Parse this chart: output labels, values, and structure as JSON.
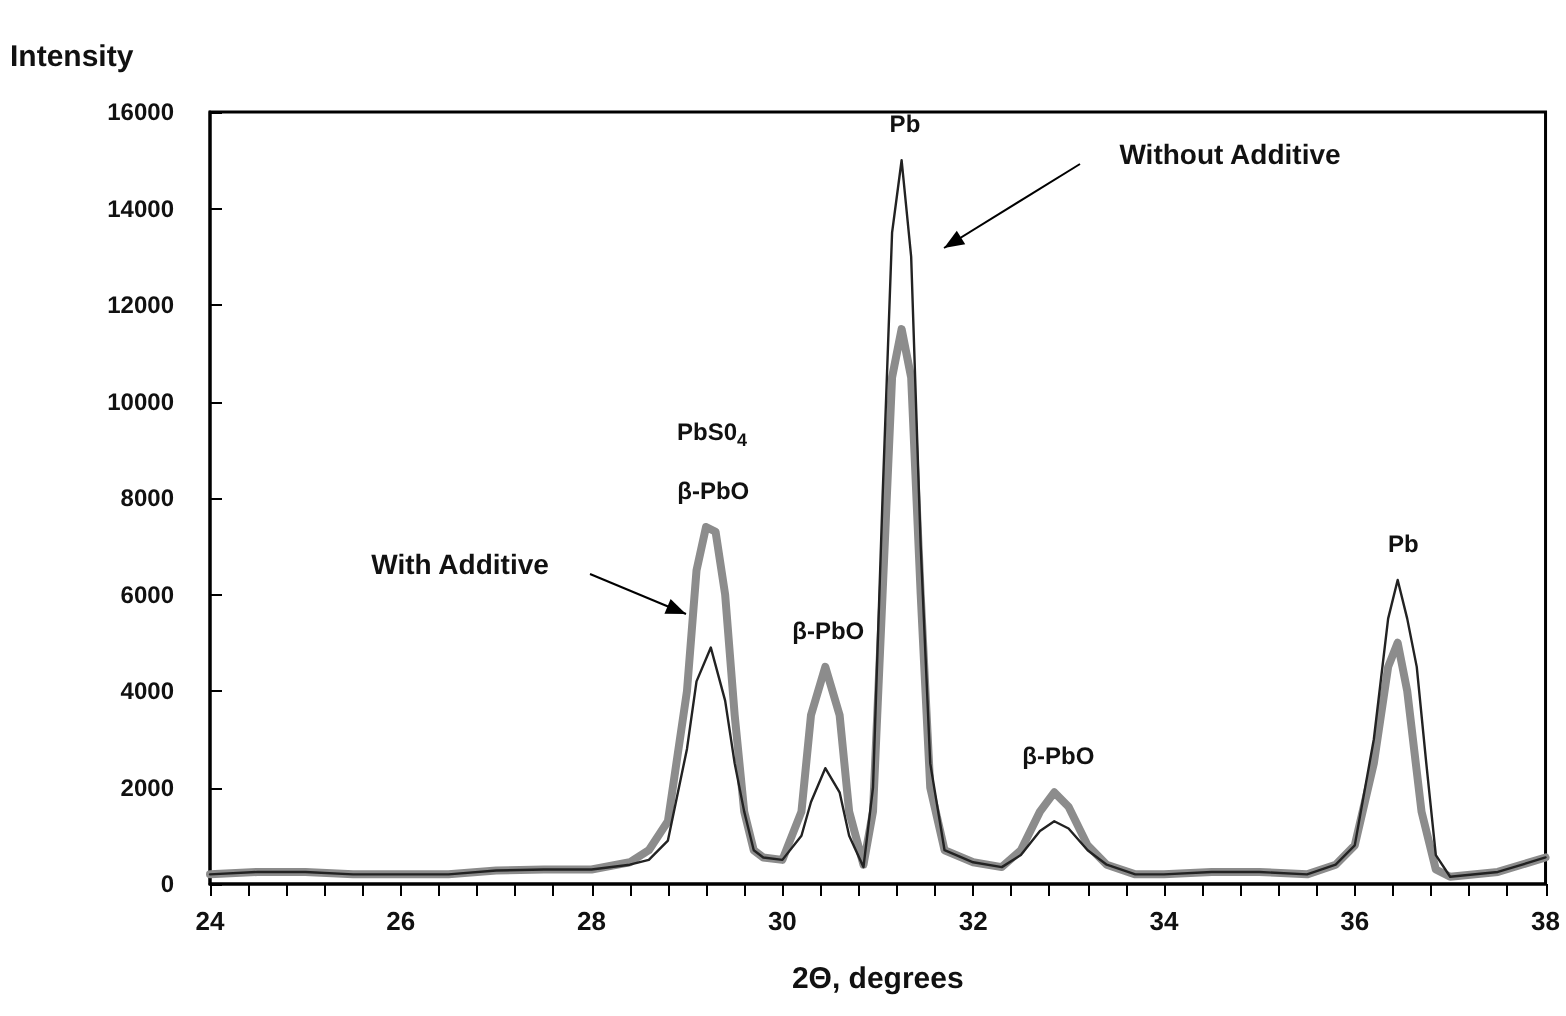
{
  "chart_data": {
    "type": "line",
    "xlabel": "2Θ, degrees",
    "ylabel": "Intensity",
    "xlim": [
      24,
      38
    ],
    "ylim": [
      0,
      16000
    ],
    "xticks": [
      24,
      {
        "value": 24.4,
        "label": null
      },
      {
        "value": 24.8,
        "label": null
      },
      {
        "value": 25.2,
        "label": null
      },
      {
        "value": 25.6,
        "label": null
      },
      26,
      {
        "value": 26.4,
        "label": null
      },
      {
        "value": 26.8,
        "label": null
      },
      {
        "value": 27.2,
        "label": null
      },
      {
        "value": 27.6,
        "label": null
      },
      28,
      {
        "value": 28.4,
        "label": null
      },
      {
        "value": 28.8,
        "label": null
      },
      {
        "value": 29.2,
        "label": null
      },
      {
        "value": 29.6,
        "label": null
      },
      30,
      {
        "value": 30.4,
        "label": null
      },
      {
        "value": 30.8,
        "label": null
      },
      {
        "value": 31.2,
        "label": null
      },
      {
        "value": 31.6,
        "label": null
      },
      32,
      {
        "value": 32.4,
        "label": null
      },
      {
        "value": 32.8,
        "label": null
      },
      {
        "value": 33.2,
        "label": null
      },
      {
        "value": 33.6,
        "label": null
      },
      34,
      {
        "value": 34.4,
        "label": null
      },
      {
        "value": 34.8,
        "label": null
      },
      {
        "value": 35.2,
        "label": null
      },
      {
        "value": 35.6,
        "label": null
      },
      36,
      {
        "value": 36.4,
        "label": null
      },
      {
        "value": 36.8,
        "label": null
      },
      {
        "value": 37.2,
        "label": null
      },
      {
        "value": 37.6,
        "label": null
      },
      38
    ],
    "yticks": [
      0,
      2000,
      4000,
      6000,
      8000,
      10000,
      12000,
      14000,
      16000
    ],
    "grid": false,
    "marker": "none",
    "line_style": "solid",
    "series": [
      {
        "color": "#222222",
        "x": [
          24,
          24.5,
          25,
          25.5,
          26,
          26.5,
          27,
          27.5,
          28,
          28.4,
          28.6,
          28.8,
          29.0,
          29.1,
          29.25,
          29.4,
          29.5,
          29.6,
          29.7,
          29.8,
          30.0,
          30.2,
          30.3,
          30.45,
          30.6,
          30.7,
          30.85,
          30.95,
          31.05,
          31.15,
          31.25,
          31.35,
          31.45,
          31.55,
          31.7,
          32.0,
          32.3,
          32.5,
          32.7,
          32.85,
          33.0,
          33.2,
          33.4,
          33.7,
          34.0,
          34.5,
          35,
          35.5,
          35.8,
          36.0,
          36.2,
          36.35,
          36.45,
          36.55,
          36.65,
          36.75,
          36.85,
          37.0,
          37.5,
          38
        ],
        "values": [
          200,
          250,
          250,
          200,
          200,
          200,
          280,
          300,
          300,
          400,
          500,
          900,
          2800,
          4200,
          4900,
          3800,
          2500,
          1500,
          700,
          550,
          500,
          1000,
          1700,
          2400,
          1900,
          1000,
          350,
          2000,
          8000,
          13500,
          15000,
          13000,
          7000,
          2500,
          700,
          450,
          350,
          600,
          1100,
          1300,
          1150,
          700,
          400,
          200,
          200,
          250,
          250,
          200,
          400,
          800,
          3000,
          5500,
          6300,
          5500,
          4500,
          2500,
          600,
          150,
          250,
          550
        ]
      },
      {
        "color": "#8c8c8c",
        "x": [
          24,
          24.5,
          25,
          25.5,
          26,
          26.5,
          27,
          27.5,
          28,
          28.4,
          28.6,
          28.8,
          29.0,
          29.1,
          29.2,
          29.3,
          29.4,
          29.5,
          29.6,
          29.7,
          29.8,
          30.0,
          30.2,
          30.3,
          30.45,
          30.6,
          30.7,
          30.85,
          30.95,
          31.05,
          31.15,
          31.25,
          31.35,
          31.45,
          31.55,
          31.7,
          32.0,
          32.3,
          32.5,
          32.7,
          32.85,
          33.0,
          33.2,
          33.4,
          33.7,
          34.0,
          34.5,
          35,
          35.5,
          35.8,
          36.0,
          36.2,
          36.35,
          36.45,
          36.55,
          36.7,
          36.85,
          37.0,
          37.5,
          38
        ],
        "values": [
          200,
          250,
          250,
          200,
          200,
          200,
          280,
          300,
          300,
          450,
          700,
          1300,
          4000,
          6500,
          7400,
          7300,
          6000,
          3500,
          1500,
          700,
          550,
          500,
          1500,
          3500,
          4500,
          3500,
          1500,
          400,
          1500,
          6000,
          10500,
          11500,
          10500,
          6000,
          2000,
          700,
          450,
          350,
          700,
          1500,
          1900,
          1600,
          800,
          400,
          200,
          200,
          250,
          250,
          200,
          400,
          800,
          2500,
          4500,
          5000,
          4000,
          1500,
          300,
          150,
          250,
          550
        ]
      }
    ],
    "annotations": [
      {
        "text": "Pb",
        "x": 31.25,
        "y": 15000
      },
      {
        "text": "β-PbO",
        "x": 29.25,
        "y": 7400
      },
      "PbS0$_{4}$",
      {
        "text": "β-PbO",
        "x": 30.45,
        "y": 4500
      },
      {
        "text": "β-PbO",
        "x": 32.85,
        "y": 1900
      },
      {
        "text": "Pb",
        "x": 36.45,
        "y": 6300
      },
      "With Additive",
      "Without Additive"
    ]
  }
}
